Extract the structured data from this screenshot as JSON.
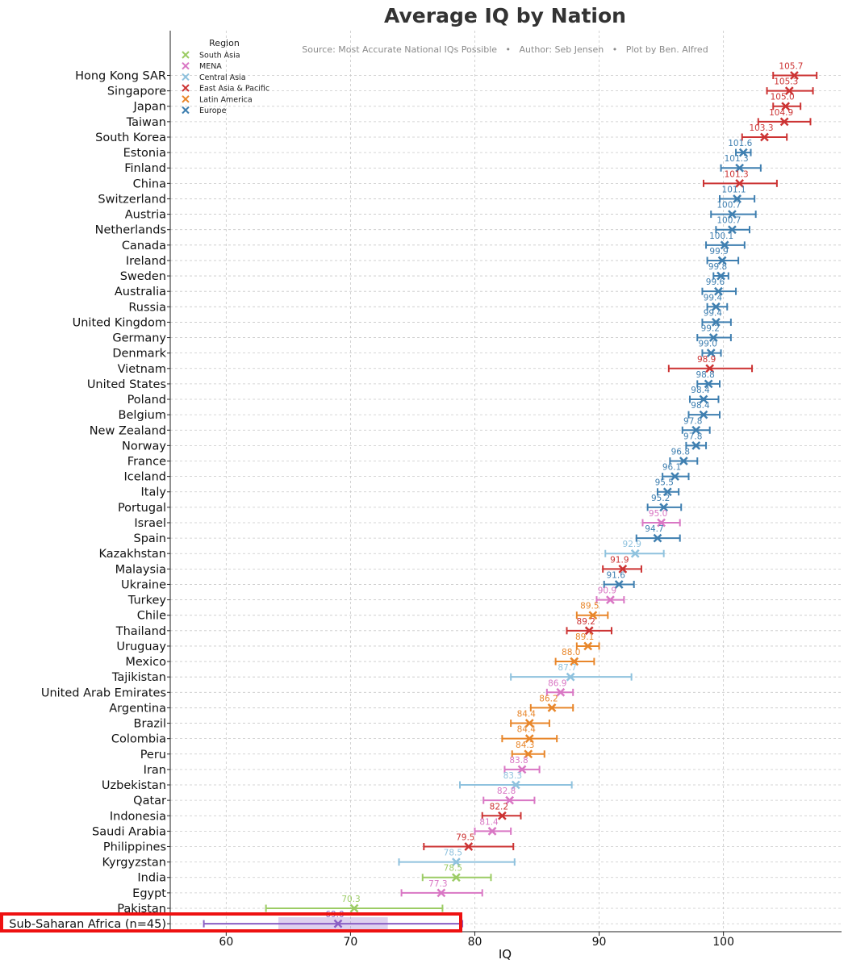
{
  "chart_data": {
    "type": "scatter",
    "title": "Average IQ by Nation",
    "subtitle": "Source: Most Accurate National IQs Possible   •   Author: Seb Jensen   •   Plot by Ben. Alfred",
    "xlabel": "IQ",
    "ylabel": "",
    "xlim": [
      55.5,
      109.5
    ],
    "xticks": [
      60,
      70,
      80,
      90,
      100
    ],
    "grid": true,
    "legend": {
      "title": "Region",
      "placement": "top-left",
      "entries": [
        {
          "name": "South Asia",
          "color": "#9ccc65"
        },
        {
          "name": "MENA",
          "color": "#d977c4"
        },
        {
          "name": "Central Asia",
          "color": "#8fc2de"
        },
        {
          "name": "East Asia & Pacific",
          "color": "#cc3333"
        },
        {
          "name": "Latin America",
          "color": "#e8862a"
        },
        {
          "name": "Europe",
          "color": "#3f7fb0"
        }
      ]
    },
    "region_colors": {
      "South Asia": "#9ccc65",
      "MENA": "#d977c4",
      "Central Asia": "#8fc2de",
      "East Asia & Pacific": "#cc3333",
      "Latin America": "#e8862a",
      "Europe": "#3f7fb0",
      "Sub-Saharan Africa": "#8a5fc4"
    },
    "highlight_color": "#ee1111",
    "points": [
      {
        "name": "Hong Kong SAR",
        "region": "East Asia & Pacific",
        "value": 105.7,
        "low": 104.0,
        "high": 107.5
      },
      {
        "name": "Singapore",
        "region": "East Asia & Pacific",
        "value": 105.3,
        "low": 103.5,
        "high": 107.2
      },
      {
        "name": "Japan",
        "region": "East Asia & Pacific",
        "value": 105.0,
        "low": 104.0,
        "high": 106.2
      },
      {
        "name": "Taiwan",
        "region": "East Asia & Pacific",
        "value": 104.9,
        "low": 102.8,
        "high": 107.0
      },
      {
        "name": "South Korea",
        "region": "East Asia & Pacific",
        "value": 103.3,
        "low": 101.5,
        "high": 105.1
      },
      {
        "name": "Estonia",
        "region": "Europe",
        "value": 101.6,
        "low": 101.0,
        "high": 102.2
      },
      {
        "name": "Finland",
        "region": "Europe",
        "value": 101.3,
        "low": 99.8,
        "high": 103.0
      },
      {
        "name": "China",
        "region": "East Asia & Pacific",
        "value": 101.3,
        "low": 98.4,
        "high": 104.3
      },
      {
        "name": "Switzerland",
        "region": "Europe",
        "value": 101.1,
        "low": 99.7,
        "high": 102.5
      },
      {
        "name": "Austria",
        "region": "Europe",
        "value": 100.7,
        "low": 99.0,
        "high": 102.6
      },
      {
        "name": "Netherlands",
        "region": "Europe",
        "value": 100.7,
        "low": 99.4,
        "high": 102.1
      },
      {
        "name": "Canada",
        "region": "Europe",
        "value": 100.1,
        "low": 98.6,
        "high": 101.7
      },
      {
        "name": "Ireland",
        "region": "Europe",
        "value": 99.9,
        "low": 98.7,
        "high": 101.2
      },
      {
        "name": "Sweden",
        "region": "Europe",
        "value": 99.8,
        "low": 99.2,
        "high": 100.4
      },
      {
        "name": "Australia",
        "region": "Europe",
        "value": 99.6,
        "low": 98.3,
        "high": 101.0
      },
      {
        "name": "Russia",
        "region": "Europe",
        "value": 99.4,
        "low": 98.7,
        "high": 100.3
      },
      {
        "name": "United Kingdom",
        "region": "Europe",
        "value": 99.4,
        "low": 98.3,
        "high": 100.6
      },
      {
        "name": "Germany",
        "region": "Europe",
        "value": 99.2,
        "low": 97.9,
        "high": 100.6
      },
      {
        "name": "Denmark",
        "region": "Europe",
        "value": 99.0,
        "low": 98.3,
        "high": 99.8
      },
      {
        "name": "Vietnam",
        "region": "East Asia & Pacific",
        "value": 98.9,
        "low": 95.6,
        "high": 102.3
      },
      {
        "name": "United States",
        "region": "Europe",
        "value": 98.8,
        "low": 97.9,
        "high": 99.7
      },
      {
        "name": "Poland",
        "region": "Europe",
        "value": 98.4,
        "low": 97.3,
        "high": 99.6
      },
      {
        "name": "Belgium",
        "region": "Europe",
        "value": 98.4,
        "low": 97.2,
        "high": 99.7
      },
      {
        "name": "New Zealand",
        "region": "Europe",
        "value": 97.8,
        "low": 96.7,
        "high": 98.9
      },
      {
        "name": "Norway",
        "region": "Europe",
        "value": 97.8,
        "low": 97.0,
        "high": 98.6
      },
      {
        "name": "France",
        "region": "Europe",
        "value": 96.8,
        "low": 95.7,
        "high": 97.9
      },
      {
        "name": "Iceland",
        "region": "Europe",
        "value": 96.1,
        "low": 95.1,
        "high": 97.2
      },
      {
        "name": "Italy",
        "region": "Europe",
        "value": 95.5,
        "low": 94.7,
        "high": 96.4
      },
      {
        "name": "Portugal",
        "region": "Europe",
        "value": 95.2,
        "low": 93.9,
        "high": 96.6
      },
      {
        "name": "Israel",
        "region": "MENA",
        "value": 95.0,
        "low": 93.5,
        "high": 96.5
      },
      {
        "name": "Spain",
        "region": "Europe",
        "value": 94.7,
        "low": 93.0,
        "high": 96.5
      },
      {
        "name": "Kazakhstan",
        "region": "Central Asia",
        "value": 92.9,
        "low": 90.5,
        "high": 95.2
      },
      {
        "name": "Malaysia",
        "region": "East Asia & Pacific",
        "value": 91.9,
        "low": 90.3,
        "high": 93.4
      },
      {
        "name": "Ukraine",
        "region": "Europe",
        "value": 91.6,
        "low": 90.4,
        "high": 92.8
      },
      {
        "name": "Turkey",
        "region": "MENA",
        "value": 90.9,
        "low": 89.8,
        "high": 92.0
      },
      {
        "name": "Chile",
        "region": "Latin America",
        "value": 89.5,
        "low": 88.2,
        "high": 90.7
      },
      {
        "name": "Thailand",
        "region": "East Asia & Pacific",
        "value": 89.2,
        "low": 87.4,
        "high": 91.0
      },
      {
        "name": "Uruguay",
        "region": "Latin America",
        "value": 89.1,
        "low": 88.2,
        "high": 90.0
      },
      {
        "name": "Mexico",
        "region": "Latin America",
        "value": 88.0,
        "low": 86.5,
        "high": 89.6
      },
      {
        "name": "Tajikistan",
        "region": "Central Asia",
        "value": 87.7,
        "low": 82.9,
        "high": 92.6
      },
      {
        "name": "United Arab Emirates",
        "region": "MENA",
        "value": 86.9,
        "low": 85.8,
        "high": 87.9
      },
      {
        "name": "Argentina",
        "region": "Latin America",
        "value": 86.2,
        "low": 84.5,
        "high": 87.9
      },
      {
        "name": "Brazil",
        "region": "Latin America",
        "value": 84.4,
        "low": 82.9,
        "high": 86.0
      },
      {
        "name": "Colombia",
        "region": "Latin America",
        "value": 84.4,
        "low": 82.2,
        "high": 86.6
      },
      {
        "name": "Peru",
        "region": "Latin America",
        "value": 84.3,
        "low": 83.0,
        "high": 85.6
      },
      {
        "name": "Iran",
        "region": "MENA",
        "value": 83.8,
        "low": 82.4,
        "high": 85.2
      },
      {
        "name": "Uzbekistan",
        "region": "Central Asia",
        "value": 83.3,
        "low": 78.8,
        "high": 87.8
      },
      {
        "name": "Qatar",
        "region": "MENA",
        "value": 82.8,
        "low": 80.7,
        "high": 84.8
      },
      {
        "name": "Indonesia",
        "region": "East Asia & Pacific",
        "value": 82.2,
        "low": 80.6,
        "high": 83.7
      },
      {
        "name": "Saudi Arabia",
        "region": "MENA",
        "value": 81.4,
        "low": 80.0,
        "high": 82.9
      },
      {
        "name": "Philippines",
        "region": "East Asia & Pacific",
        "value": 79.5,
        "low": 75.9,
        "high": 83.1
      },
      {
        "name": "Kyrgyzstan",
        "region": "Central Asia",
        "value": 78.5,
        "low": 73.9,
        "high": 83.2
      },
      {
        "name": "India",
        "region": "South Asia",
        "value": 78.5,
        "low": 75.8,
        "high": 81.3
      },
      {
        "name": "Egypt",
        "region": "MENA",
        "value": 77.3,
        "low": 74.1,
        "high": 80.6
      },
      {
        "name": "Pakistan",
        "region": "South Asia",
        "value": 70.3,
        "low": 63.2,
        "high": 77.4
      },
      {
        "name": "Sub-Saharan Africa (n=45)",
        "region": "Sub-Saharan Africa",
        "value": 69.0,
        "low": 58.2,
        "high": 79.0,
        "box_low": 64.2,
        "box_high": 73.0,
        "highlighted": true
      }
    ]
  }
}
